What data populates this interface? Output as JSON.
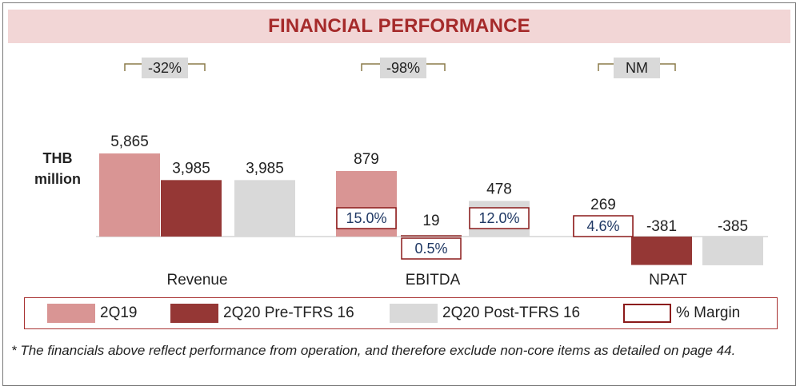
{
  "header": {
    "title": "FINANCIAL PERFORMANCE"
  },
  "unit_label": [
    "THB",
    "million"
  ],
  "chart_data": {
    "type": "bar",
    "categories": [
      "Revenue",
      "EBITDA",
      "NPAT"
    ],
    "series": [
      {
        "name": "2Q19",
        "values": [
          5865,
          879,
          269
        ],
        "labels": [
          "5,865",
          "879",
          "269"
        ],
        "color": "#d99594"
      },
      {
        "name": "2Q20 Pre-TFRS 16",
        "values": [
          3985,
          19,
          -381
        ],
        "labels": [
          "3,985",
          "19",
          "-381"
        ],
        "color": "#953735"
      },
      {
        "name": "2Q20 Post-TFRS 16",
        "values": [
          3985,
          478,
          -385
        ],
        "labels": [
          "3,985",
          "478",
          "-385"
        ],
        "color": "#d9d9d9"
      }
    ],
    "margins": [
      {
        "category": "EBITDA",
        "series": "2Q19",
        "label": "15.0%"
      },
      {
        "category": "EBITDA",
        "series": "2Q20 Pre-TFRS 16",
        "label": "0.5%"
      },
      {
        "category": "EBITDA",
        "series": "2Q20 Post-TFRS 16",
        "label": "12.0%"
      },
      {
        "category": "NPAT",
        "series": "2Q19",
        "label": "4.6%"
      }
    ],
    "changes": [
      "-32%",
      "-98%",
      "NM"
    ],
    "legend": {
      "position": "bottom",
      "items": [
        {
          "label": "2Q19",
          "color": "#d99594",
          "kind": "fill"
        },
        {
          "label": "2Q20 Pre-TFRS 16",
          "color": "#953735",
          "kind": "fill"
        },
        {
          "label": "2Q20 Post-TFRS 16",
          "color": "#d9d9d9",
          "kind": "fill"
        },
        {
          "label": "% Margin",
          "color": "#8b1a1a",
          "kind": "outline"
        }
      ]
    }
  },
  "footnote": "* The financials above reflect performance from operation, and therefore exclude non-core items as detailed on page 44."
}
